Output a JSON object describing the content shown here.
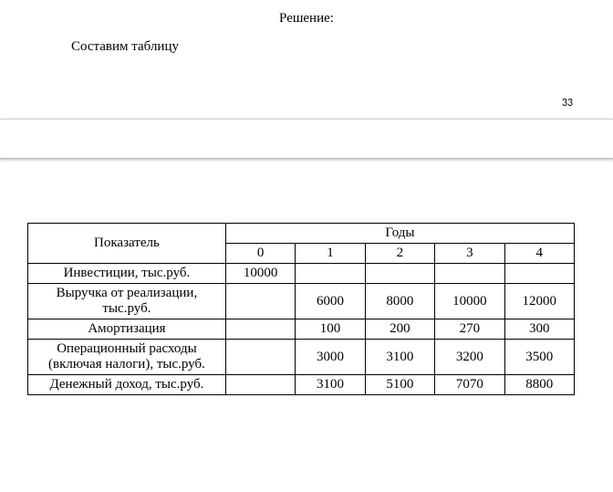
{
  "heading": "Решение:",
  "intro": "Составим таблицу",
  "page_number": "33",
  "table": {
    "label_header": "Показатель",
    "years_header": "Годы",
    "years": [
      "0",
      "1",
      "2",
      "3",
      "4"
    ],
    "rows": [
      {
        "label": "Инвестиции, тыс.руб.",
        "cells": [
          "10000",
          "",
          "",
          "",
          ""
        ]
      },
      {
        "label": "Выручка от реализации, тыс.руб.",
        "cells": [
          "",
          "6000",
          "8000",
          "10000",
          "12000"
        ]
      },
      {
        "label": "Амортизация",
        "cells": [
          "",
          "100",
          "200",
          "270",
          "300"
        ]
      },
      {
        "label": "Операционный расходы (включая налоги), тыс.руб.",
        "cells": [
          "",
          "3000",
          "3100",
          "3200",
          "3500"
        ]
      },
      {
        "label": "Денежный доход, тыс.руб.",
        "cells": [
          "",
          "3100",
          "5100",
          "7070",
          "8800"
        ]
      }
    ]
  }
}
